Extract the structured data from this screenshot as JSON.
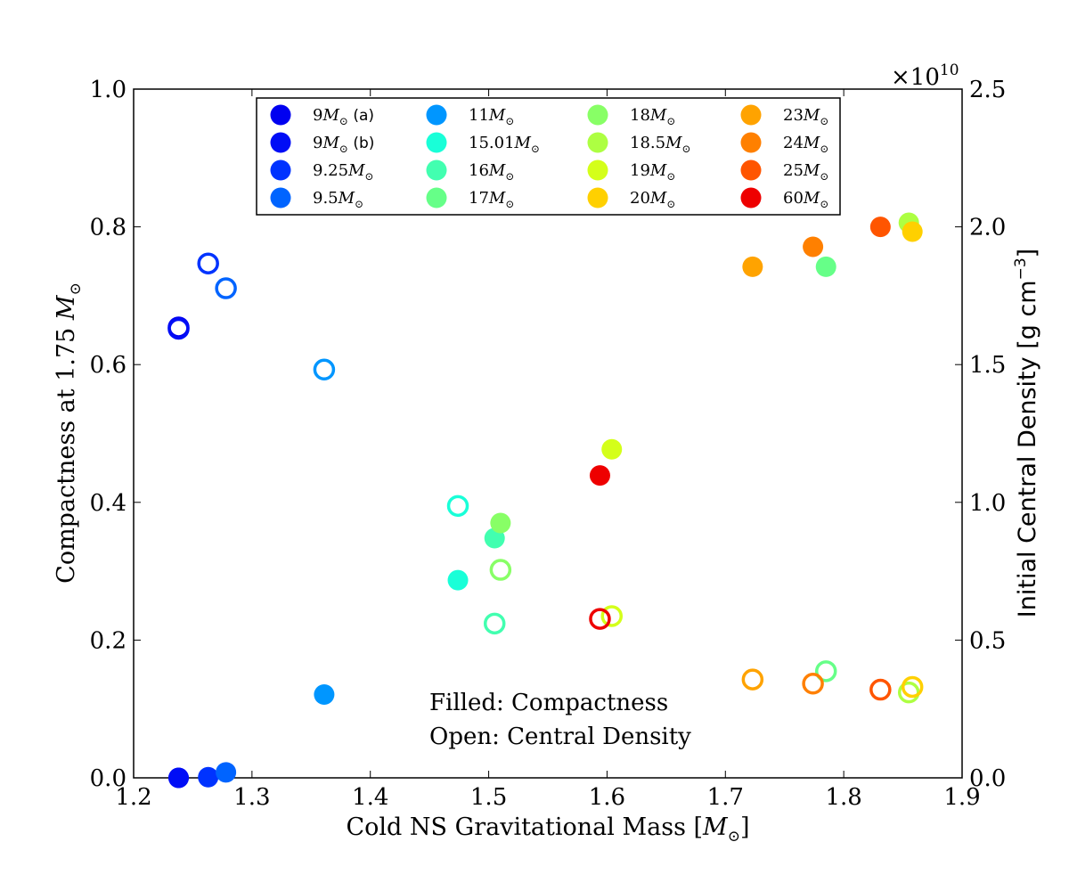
{
  "chart_data": {
    "type": "scatter",
    "xlabel": "Cold NS Gravitational Mass [",
    "xlabel_unit": "M",
    "xlabel_close": "]",
    "ylabel_left": "Compactness at 1.75",
    "ylabel_left_unit": "M",
    "ylabel_right": "Initial Central Density [g cm",
    "ylabel_right_exp": "−3",
    "ylabel_right_close": "]",
    "offset_text": "×10",
    "offset_exp": "10",
    "xlim": [
      1.2,
      1.9
    ],
    "ylim_left": [
      0.0,
      1.0
    ],
    "ylim_right": [
      0.0,
      2.5
    ],
    "x_ticks": [
      "1.2",
      "1.3",
      "1.4",
      "1.5",
      "1.6",
      "1.7",
      "1.8",
      "1.9"
    ],
    "y_left_ticks": [
      "0.0",
      "0.2",
      "0.4",
      "0.6",
      "0.8",
      "1.0"
    ],
    "y_right_ticks": [
      "0.0",
      "0.5",
      "1.0",
      "1.5",
      "2.0",
      "2.5"
    ],
    "annotation_filled": "Filled: Compactness",
    "annotation_open": "Open: Central Density",
    "legend_location": "upper center",
    "series": [
      {
        "name": "9",
        "suffix": " (a)",
        "color": "#0000f0",
        "x": 1.238,
        "compactness": 0.0,
        "central_density": 1.635
      },
      {
        "name": "9",
        "suffix": " (b)",
        "color": "#000df6",
        "x": 1.238,
        "compactness": 0.0,
        "central_density": 1.63
      },
      {
        "name": "9.25",
        "suffix": "",
        "color": "#0033ff",
        "x": 1.263,
        "compactness": 0.001,
        "central_density": 1.867
      },
      {
        "name": "9.5",
        "suffix": "",
        "color": "#0064ff",
        "x": 1.278,
        "compactness": 0.008,
        "central_density": 1.777
      },
      {
        "name": "11",
        "suffix": "",
        "color": "#0096ff",
        "x": 1.361,
        "compactness": 0.121,
        "central_density": 1.482
      },
      {
        "name": "15.01",
        "suffix": "",
        "color": "#19ffd8",
        "x": 1.474,
        "compactness": 0.287,
        "central_density": 0.987
      },
      {
        "name": "16",
        "suffix": "",
        "color": "#42ffb0",
        "x": 1.505,
        "compactness": 0.348,
        "central_density": 0.56
      },
      {
        "name": "17",
        "suffix": "",
        "color": "#66ff88",
        "x": 1.785,
        "compactness": 0.742,
        "central_density": 0.387
      },
      {
        "name": "18",
        "suffix": "",
        "color": "#88ff66",
        "x": 1.51,
        "compactness": 0.37,
        "central_density": 0.755
      },
      {
        "name": "18.5",
        "suffix": "",
        "color": "#adff42",
        "x": 1.855,
        "compactness": 0.806,
        "central_density": 0.31
      },
      {
        "name": "19",
        "suffix": "",
        "color": "#d4ff1a",
        "x": 1.604,
        "compactness": 0.477,
        "central_density": 0.587
      },
      {
        "name": "20",
        "suffix": "",
        "color": "#ffd000",
        "x": 1.858,
        "compactness": 0.793,
        "central_density": 0.33
      },
      {
        "name": "23",
        "suffix": "",
        "color": "#ffa300",
        "x": 1.723,
        "compactness": 0.742,
        "central_density": 0.357
      },
      {
        "name": "24",
        "suffix": "",
        "color": "#ff8000",
        "x": 1.774,
        "compactness": 0.771,
        "central_density": 0.342
      },
      {
        "name": "25",
        "suffix": "",
        "color": "#ff5500",
        "x": 1.831,
        "compactness": 0.8,
        "central_density": 0.32
      },
      {
        "name": "60",
        "suffix": "",
        "color": "#ee0000",
        "x": 1.594,
        "compactness": 0.439,
        "central_density": 0.577
      }
    ]
  }
}
